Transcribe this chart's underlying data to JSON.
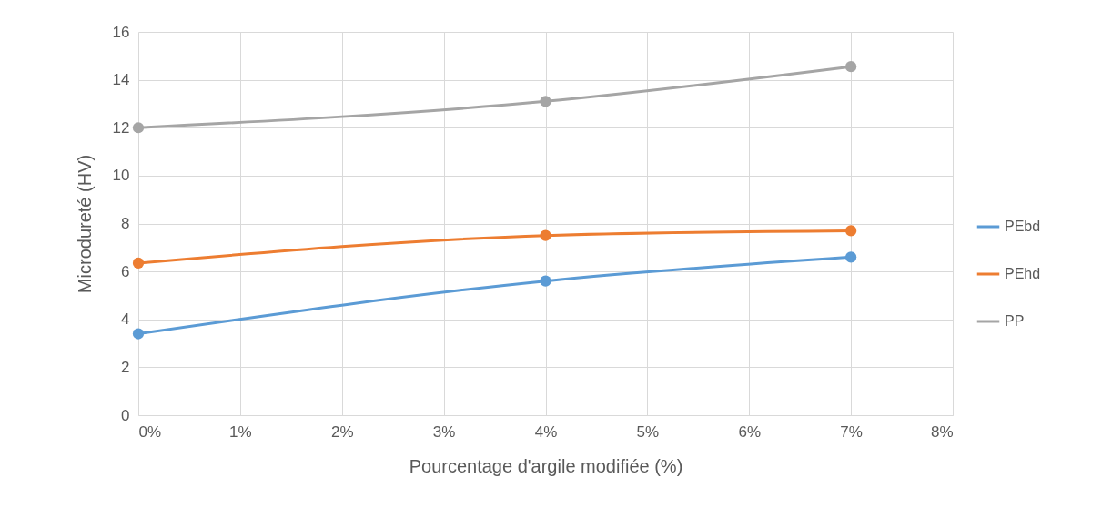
{
  "chart_data": {
    "type": "line",
    "xlabel": "Pourcentage d'argile modifiée (%)",
    "ylabel": "Microdureté (HV)",
    "x": [
      0,
      4,
      7
    ],
    "series": [
      {
        "name": "PEbd",
        "color": "#5b9bd5",
        "values": [
          3.4,
          5.6,
          6.6
        ]
      },
      {
        "name": "PEhd",
        "color": "#ed7d31",
        "values": [
          6.35,
          7.5,
          7.7
        ]
      },
      {
        "name": "PP",
        "color": "#a5a5a5",
        "values": [
          12.0,
          13.1,
          14.55
        ]
      }
    ],
    "xlim": [
      0,
      8
    ],
    "xticks": [
      {
        "value": 0,
        "label": "0%"
      },
      {
        "value": 1,
        "label": "1%"
      },
      {
        "value": 2,
        "label": "2%"
      },
      {
        "value": 3,
        "label": "3%"
      },
      {
        "value": 4,
        "label": "4%"
      },
      {
        "value": 5,
        "label": "5%"
      },
      {
        "value": 6,
        "label": "6%"
      },
      {
        "value": 7,
        "label": "7%"
      },
      {
        "value": 8,
        "label": "8%"
      }
    ],
    "ylim": [
      0,
      16
    ],
    "yticks": [
      0,
      2,
      4,
      6,
      8,
      10,
      12,
      14,
      16
    ],
    "grid": true,
    "legend": "right",
    "marker": "circle",
    "line_style": "solid"
  }
}
